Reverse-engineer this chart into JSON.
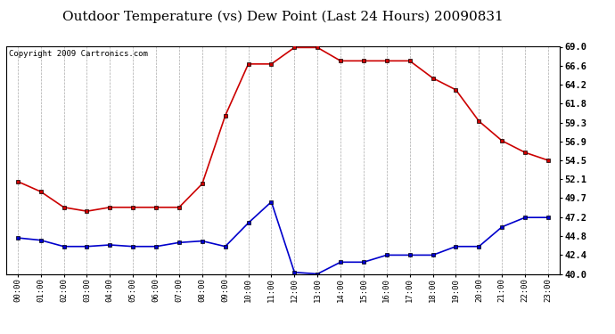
{
  "title": "Outdoor Temperature (vs) Dew Point (Last 24 Hours) 20090831",
  "copyright_text": "Copyright 2009 Cartronics.com",
  "hours": [
    "00:00",
    "01:00",
    "02:00",
    "03:00",
    "04:00",
    "05:00",
    "06:00",
    "07:00",
    "08:00",
    "09:00",
    "10:00",
    "11:00",
    "12:00",
    "13:00",
    "14:00",
    "15:00",
    "16:00",
    "17:00",
    "18:00",
    "19:00",
    "20:00",
    "21:00",
    "22:00",
    "23:00"
  ],
  "temp_red": [
    51.8,
    50.5,
    48.5,
    48.0,
    48.5,
    48.5,
    48.5,
    48.5,
    51.5,
    60.2,
    66.8,
    66.8,
    68.9,
    68.9,
    67.2,
    67.2,
    67.2,
    67.2,
    65.0,
    63.5,
    59.5,
    57.0,
    55.5,
    54.5
  ],
  "dew_blue": [
    44.6,
    44.3,
    43.5,
    43.5,
    43.7,
    43.5,
    43.5,
    44.0,
    44.2,
    43.5,
    46.5,
    49.2,
    40.2,
    40.0,
    41.5,
    41.5,
    42.4,
    42.4,
    42.4,
    43.5,
    43.5,
    46.0,
    47.2,
    47.2
  ],
  "ylim_min": 40.0,
  "ylim_max": 69.0,
  "yticks": [
    40.0,
    42.4,
    44.8,
    47.2,
    49.7,
    52.1,
    54.5,
    56.9,
    59.3,
    61.8,
    64.2,
    66.6,
    69.0
  ],
  "red_color": "#cc0000",
  "blue_color": "#0000cc",
  "grid_color": "#aaaaaa",
  "bg_color": "#ffffff",
  "title_fontsize": 11,
  "copyright_fontsize": 6.5
}
